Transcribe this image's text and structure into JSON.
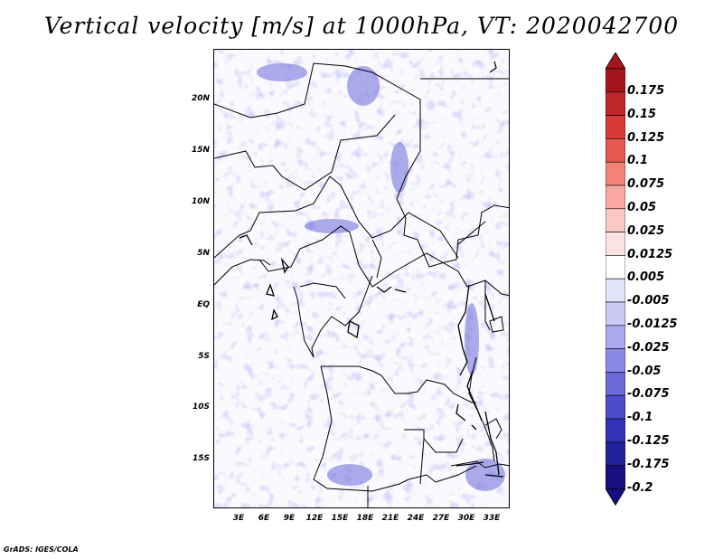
{
  "title": "Vertical velocity [m/s] at 1000hPa, VT: 2020042700",
  "footer": "GrADS: IGES/COLA",
  "axes": {
    "x_labels": [
      "3E",
      "6E",
      "9E",
      "12E",
      "15E",
      "18E",
      "21E",
      "24E",
      "27E",
      "30E",
      "33E"
    ],
    "y_labels": [
      "20N",
      "15N",
      "10N",
      "5N",
      "EQ",
      "5S",
      "10S",
      "15S"
    ]
  },
  "legend": {
    "labels": [
      "0.175",
      "0.15",
      "0.125",
      "0.1",
      "0.075",
      "0.05",
      "0.025",
      "0.0125",
      "0.005",
      "-0.005",
      "-0.0125",
      "-0.025",
      "-0.05",
      "-0.075",
      "-0.1",
      "-0.125",
      "-0.175",
      "-0.2"
    ],
    "colors": [
      "#a4161a",
      "#c0262a",
      "#d83a36",
      "#e85a50",
      "#f2827a",
      "#f9a7a1",
      "#fcc8c4",
      "#fde3e0",
      "#ffffff",
      "#e4e4fa",
      "#c9c9f4",
      "#a9a9ee",
      "#8a8ae6",
      "#6a6adb",
      "#4c4ccc",
      "#3333b8",
      "#21219c",
      "#150f82"
    ],
    "top_cap_color": "#a4161a",
    "bottom_cap_color": "#150f82"
  }
}
